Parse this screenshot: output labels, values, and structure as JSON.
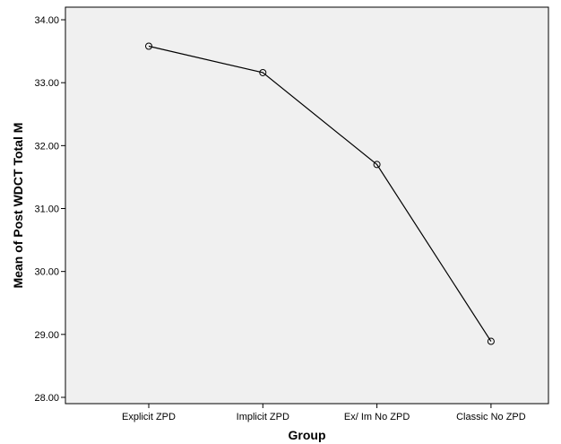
{
  "chart_data": {
    "type": "line",
    "title": "",
    "xlabel": "Group",
    "ylabel": "Mean of Post WDCT Total M",
    "categories": [
      "Explicit ZPD",
      "Implicit ZPD",
      "Ex/ Im No ZPD",
      "Classic No ZPD"
    ],
    "series": [
      {
        "values": [
          33.58,
          33.16,
          31.7,
          28.89
        ]
      }
    ],
    "yticks": [
      "28.00",
      "29.00",
      "30.00",
      "31.00",
      "32.00",
      "33.00",
      "34.00"
    ],
    "ylim": [
      27.9,
      34.2
    ],
    "grid": false,
    "legend": "none",
    "marker": "open-circle",
    "colors": {
      "plot_background": "#f0f0f0",
      "line": "#000000",
      "frame": "#000000"
    }
  }
}
